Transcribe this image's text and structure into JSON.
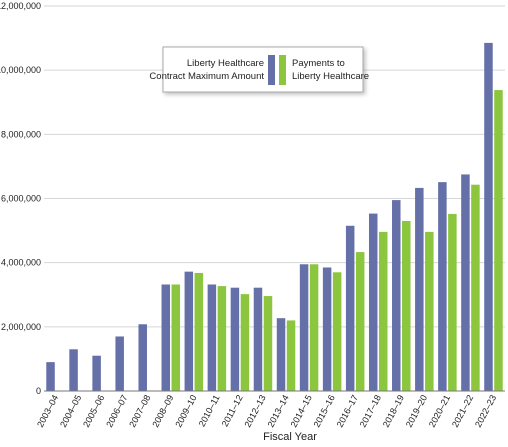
{
  "chart_data": {
    "type": "bar",
    "xlabel": "Fiscal Year",
    "ylabel": "",
    "ylim": [
      0,
      12000000
    ],
    "yticks": [
      0,
      2000000,
      4000000,
      6000000,
      8000000,
      10000000,
      12000000
    ],
    "ytick_labels": [
      "0",
      "2,000,000",
      "4,000,000",
      "6,000,000",
      "8,000,000",
      "10,000,000",
      "$12,000,000"
    ],
    "categories": [
      "2003–04",
      "2004–05",
      "2005–06",
      "2006–07",
      "2007–08",
      "2008–09",
      "2009–10",
      "2010–11",
      "2011–12",
      "2012–13",
      "2013–14",
      "2014–15",
      "2015–16",
      "2016–17",
      "2017–18",
      "2018–19",
      "2019–20",
      "2020–21",
      "2021–22",
      "2022–23"
    ],
    "series": [
      {
        "name": "Liberty Healthcare Contract Maximum Amount",
        "legend_lines": [
          "Liberty Healthcare",
          "Contract Maximum Amount"
        ],
        "color": "#6570a8",
        "values": [
          900000,
          1300000,
          1100000,
          1700000,
          2080000,
          3320000,
          3720000,
          3320000,
          3220000,
          3220000,
          2270000,
          3950000,
          3850000,
          5150000,
          5530000,
          5950000,
          6330000,
          6510000,
          6750000,
          10850000
        ]
      },
      {
        "name": "Payments to Liberty Healthcare",
        "legend_lines": [
          "Payments to",
          "Liberty Healthcare"
        ],
        "color": "#8cc63f",
        "values": [
          null,
          null,
          null,
          null,
          null,
          3320000,
          3680000,
          3270000,
          3020000,
          2960000,
          2200000,
          3950000,
          3700000,
          4330000,
          4960000,
          5300000,
          4960000,
          5520000,
          6430000,
          9380000
        ]
      }
    ],
    "grid": true,
    "legend_position": "top-center"
  }
}
